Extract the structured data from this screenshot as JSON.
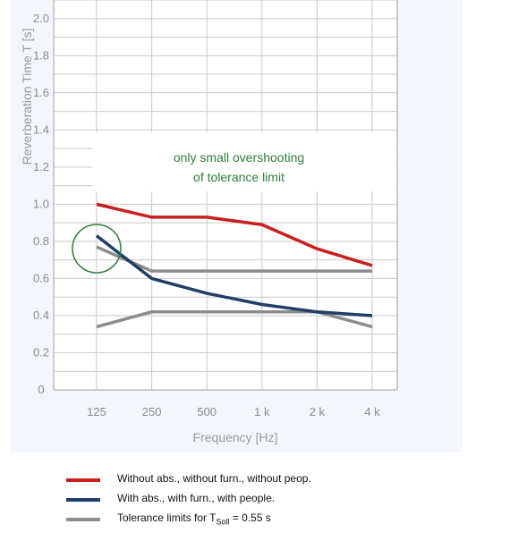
{
  "chart_data": {
    "type": "line",
    "xlabel": "Frequency [Hz]",
    "ylabel": "Reverberation Time T [s]",
    "categories": [
      "125",
      "250",
      "500",
      "1 k",
      "2 k",
      "4 k"
    ],
    "y_ticks": [
      "0",
      "0.2",
      "0.4",
      "0.6",
      "0.8",
      "1.0",
      "1.2",
      "1.4",
      "1.6",
      "1.8",
      "2.0"
    ],
    "ylim": [
      0,
      2.1
    ],
    "grid": true,
    "series": [
      {
        "name": "Without abs., without furn., without peop.",
        "color": "#c81e1e",
        "values": [
          1.0,
          0.93,
          0.93,
          0.89,
          0.76,
          0.67
        ]
      },
      {
        "name": "With abs., with furn., with people.",
        "color": "#1f3f66",
        "values": [
          0.83,
          0.6,
          0.52,
          0.46,
          0.42,
          0.4
        ]
      },
      {
        "name": "Tolerance limits for TSoll = 0.55 s",
        "color": "#8c8c8c",
        "upper": [
          0.77,
          0.64,
          0.64,
          0.64,
          0.64,
          0.64
        ],
        "lower": [
          0.34,
          0.42,
          0.42,
          0.42,
          0.42,
          0.34
        ]
      }
    ],
    "annotation": {
      "line1": "only small overshooting",
      "line2": "of tolerance limit"
    },
    "highlight_color": "#2e7d3a"
  },
  "legend": {
    "items": [
      {
        "label": "Without abs., without furn., without peop.",
        "color": "#c81e1e"
      },
      {
        "label": "With abs., with furn., with people.",
        "color": "#1f3f66"
      },
      {
        "label_prefix": "Tolerance limits for T",
        "label_sub": "Soll",
        "label_suffix": " = 0.55 s",
        "color": "#8c8c8c"
      }
    ]
  }
}
